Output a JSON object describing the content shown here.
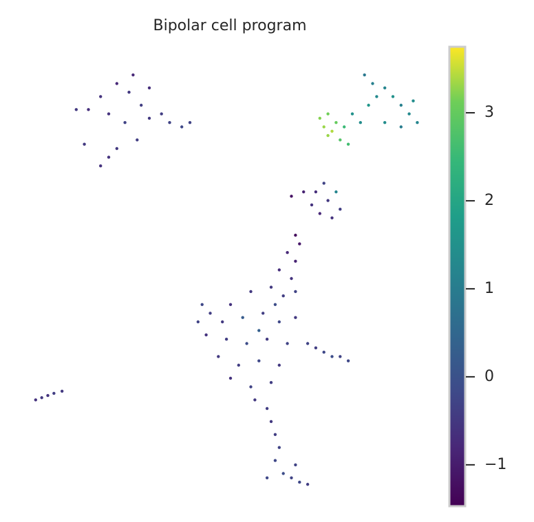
{
  "chart_data": {
    "type": "scatter",
    "title": "Bipolar cell program",
    "x": [
      18,
      22,
      25,
      28,
      20,
      24,
      30,
      33,
      35,
      38,
      40,
      15,
      12,
      27,
      22,
      20,
      18,
      14,
      30,
      26,
      72,
      73,
      74,
      75,
      76,
      74,
      77,
      78,
      79,
      80,
      82,
      84,
      86,
      88,
      90,
      92,
      94,
      96,
      92,
      88,
      85,
      83,
      95,
      65,
      68,
      71,
      74,
      77,
      75,
      72,
      70,
      76,
      73,
      66,
      67,
      64,
      66,
      62,
      65,
      60,
      63,
      66,
      55,
      50,
      45,
      42,
      48,
      53,
      58,
      62,
      66,
      44,
      49,
      54,
      59,
      64,
      47,
      52,
      57,
      62,
      50,
      55,
      60,
      56,
      59,
      43,
      57,
      61,
      69,
      71,
      73,
      75,
      77,
      79,
      60,
      61,
      62,
      61,
      63,
      65,
      67,
      69,
      66,
      59,
      2,
      3.5,
      5,
      6.5,
      8.5
    ],
    "y": [
      92,
      95,
      93,
      90,
      88,
      86,
      87,
      88,
      86,
      85,
      86,
      89,
      89,
      82,
      80,
      78,
      76,
      81,
      94,
      97,
      87,
      85,
      88,
      84,
      86,
      83,
      82,
      85,
      81,
      88,
      86,
      90,
      92,
      94,
      92,
      90,
      88,
      86,
      85,
      86,
      95,
      97,
      91,
      69,
      70,
      70,
      68,
      66,
      64,
      65,
      67,
      70,
      72,
      60,
      58,
      56,
      54,
      52,
      50,
      48,
      46,
      47,
      47,
      44,
      42,
      40,
      40,
      41,
      42,
      40,
      41,
      37,
      36,
      35,
      36,
      35,
      32,
      30,
      31,
      30,
      27,
      25,
      26,
      22,
      20,
      44,
      38,
      44,
      35,
      34,
      33,
      32,
      32,
      31,
      17,
      14,
      11,
      8,
      5,
      4,
      3,
      2.5,
      7,
      4,
      22,
      22.5,
      23,
      23.5,
      24
    ],
    "values": [
      -0.6,
      -0.8,
      -0.5,
      -0.4,
      -0.6,
      -0.3,
      -0.5,
      -0.4,
      -0.3,
      -0.2,
      -0.3,
      -0.7,
      -0.5,
      -0.4,
      -0.5,
      -0.6,
      -0.6,
      -0.5,
      -0.7,
      -0.8,
      3.2,
      3.3,
      3.1,
      3.4,
      3.0,
      3.3,
      2.8,
      2.5,
      2.6,
      1.5,
      1.4,
      1.6,
      1.3,
      1.2,
      1.5,
      1.1,
      1.3,
      1.2,
      1.0,
      1.4,
      1.1,
      0.9,
      1.4,
      -1.2,
      -0.9,
      -0.7,
      -0.5,
      -0.4,
      -0.6,
      -0.8,
      -0.6,
      1.2,
      -0.3,
      -1.3,
      -1.1,
      -0.8,
      -0.9,
      -0.7,
      -0.6,
      -0.5,
      -0.4,
      -0.3,
      -0.5,
      -0.6,
      -0.4,
      -0.3,
      -0.5,
      0.2,
      -0.4,
      -0.2,
      -0.5,
      -0.6,
      -0.4,
      -0.1,
      -0.5,
      -0.3,
      -0.5,
      -0.4,
      -0.2,
      -0.5,
      -0.6,
      -0.3,
      -0.4,
      -0.5,
      -0.4,
      -0.2,
      0.3,
      -0.1,
      -0.3,
      -0.4,
      -0.2,
      -0.1,
      -0.3,
      -0.2,
      -0.5,
      -0.4,
      -0.3,
      -0.2,
      -0.1,
      -0.3,
      -0.2,
      -0.4,
      -0.3,
      -0.2,
      -0.6,
      -0.5,
      -0.6,
      -0.4,
      -0.5
    ],
    "xlim": [
      0,
      100
    ],
    "ylim": [
      0,
      100
    ],
    "colormap": "viridis",
    "clim": [
      -1.47,
      3.75
    ],
    "cticks": [
      {
        "value": -1,
        "label": "−1"
      },
      0,
      1,
      2,
      3
    ]
  }
}
